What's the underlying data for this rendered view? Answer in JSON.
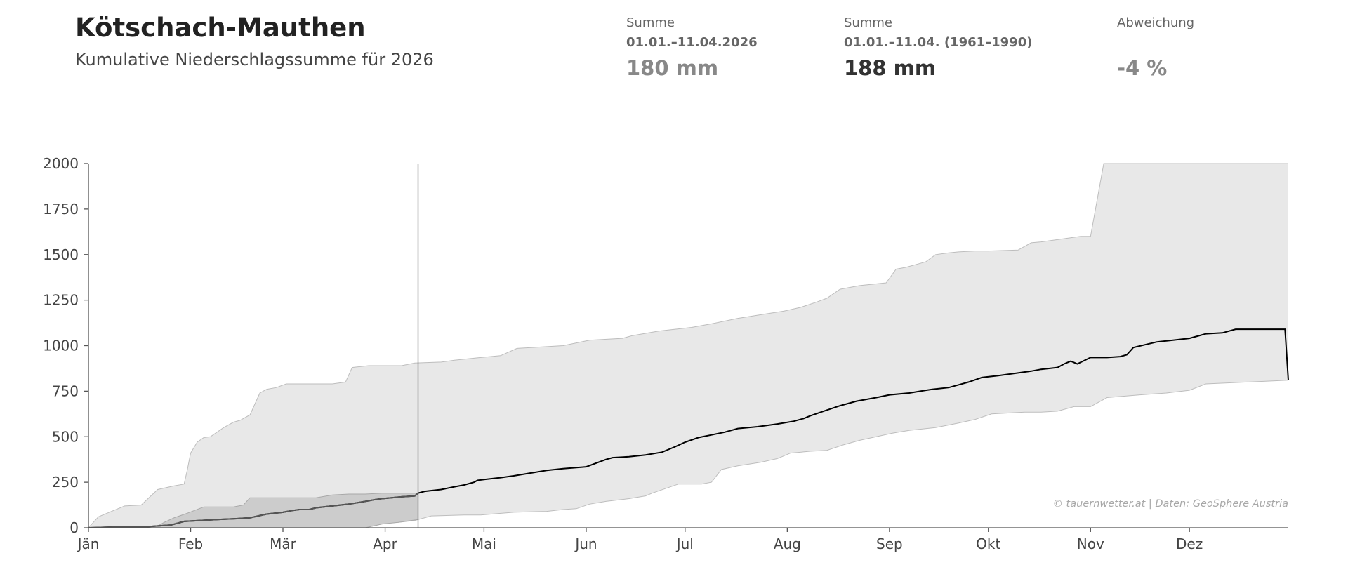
{
  "header": {
    "title": "Kötschach-Mauthen",
    "subtitle": "Kumulative Niederschlagssumme für 2026"
  },
  "stats": [
    {
      "label": "Summe",
      "period": "01.01.–11.04.2026",
      "value": "180 mm"
    },
    {
      "label": "Summe",
      "period": "01.01.–11.04. (1961–1990)",
      "value": "188 mm"
    },
    {
      "label": "Abweichung",
      "period": "",
      "value": "-4 %"
    }
  ],
  "credit": "© tauernwetter.at | Daten: GeoSphere Austria",
  "colors": {
    "band_outer": "#e8e8e8",
    "band_inner": "#cccccc",
    "mean_line": "#000000",
    "current_line": "#555555",
    "axis": "#555555"
  },
  "chart_data": {
    "type": "area",
    "x_unit": "day of year",
    "xlim": [
      1,
      365
    ],
    "ylim": [
      0,
      2000
    ],
    "ylabel": "",
    "xlabel": "",
    "grid": false,
    "ytick_labels": [
      "0",
      "250",
      "500",
      "750",
      "1000",
      "1250",
      "1500",
      "1750",
      "2000"
    ],
    "yticks": [
      0,
      250,
      500,
      750,
      1000,
      1250,
      1500,
      1750,
      2000
    ],
    "month_labels": [
      "Jän",
      "Feb",
      "Mär",
      "Apr",
      "Mai",
      "Jun",
      "Jul",
      "Aug",
      "Sep",
      "Okt",
      "Nov",
      "Dez"
    ],
    "month_starts": [
      1,
      32,
      60,
      91,
      121,
      152,
      182,
      213,
      244,
      274,
      305,
      335
    ],
    "today_day": 101,
    "series": [
      {
        "role": "range_max",
        "x": [
          1,
          4,
          8,
          12,
          17,
          22,
          27,
          30,
          31,
          32,
          34,
          36,
          38,
          42,
          45,
          47,
          50,
          53,
          55,
          58,
          61,
          66,
          70,
          75,
          79,
          81,
          86,
          96,
          100,
          108,
          112,
          120,
          126,
          131,
          145,
          149,
          153,
          163,
          166,
          174,
          184,
          190,
          198,
          205,
          212,
          217,
          222,
          225,
          229,
          235,
          243,
          246,
          249,
          253,
          255,
          258,
          262,
          265,
          270,
          274,
          283,
          287,
          290,
          302,
          305,
          307,
          309,
          315,
          335,
          340,
          345,
          365
        ],
        "y": [
          0,
          60,
          90,
          120,
          125,
          210,
          230,
          240,
          320,
          410,
          470,
          495,
          500,
          550,
          580,
          590,
          620,
          740,
          760,
          770,
          790,
          790,
          790,
          790,
          800,
          880,
          890,
          890,
          905,
          910,
          920,
          935,
          945,
          985,
          1000,
          1015,
          1030,
          1040,
          1055,
          1080,
          1100,
          1120,
          1150,
          1170,
          1190,
          1210,
          1240,
          1260,
          1310,
          1330,
          1345,
          1420,
          1430,
          1450,
          1460,
          1500,
          1510,
          1515,
          1520,
          1520,
          1525,
          1565,
          1570,
          1600,
          1600,
          1800,
          2000,
          2000,
          2000,
          2000,
          2000,
          2000
        ]
      },
      {
        "role": "range_min",
        "x": [
          1,
          30,
          55,
          85,
          91,
          95,
          100,
          105,
          115,
          120,
          130,
          140,
          145,
          149,
          153,
          158,
          165,
          170,
          172,
          180,
          187,
          190,
          193,
          198,
          205,
          210,
          214,
          220,
          225,
          230,
          235,
          240,
          245,
          250,
          258,
          265,
          270,
          275,
          285,
          290,
          295,
          300,
          305,
          310,
          320,
          328,
          335,
          340,
          365
        ],
        "y": [
          0,
          0,
          0,
          0,
          25,
          30,
          40,
          65,
          70,
          70,
          85,
          90,
          100,
          105,
          130,
          145,
          160,
          175,
          190,
          240,
          240,
          250,
          320,
          340,
          360,
          380,
          410,
          420,
          425,
          455,
          480,
          500,
          520,
          535,
          550,
          575,
          595,
          625,
          635,
          635,
          640,
          665,
          665,
          715,
          730,
          740,
          755,
          790,
          810
        ]
      },
      {
        "role": "current_max",
        "x": [
          1,
          22,
          24,
          27,
          31,
          36,
          40,
          45,
          48,
          50,
          54,
          60,
          70,
          75,
          80,
          85,
          90,
          95,
          101
        ],
        "y": [
          0,
          10,
          30,
          55,
          80,
          115,
          115,
          115,
          125,
          165,
          165,
          165,
          165,
          180,
          185,
          185,
          190,
          190,
          190
        ]
      },
      {
        "role": "current_min",
        "x": [
          1,
          85,
          90,
          95,
          101
        ],
        "y": [
          0,
          0,
          20,
          30,
          45
        ]
      },
      {
        "role": "mean",
        "x": [
          1,
          10,
          18,
          22,
          26,
          30,
          35,
          40,
          46,
          50,
          55,
          60,
          63,
          65,
          68,
          70,
          75,
          80,
          85,
          88,
          90,
          93,
          96,
          100,
          101,
          103,
          108,
          112,
          115,
          118,
          119,
          121,
          126,
          130,
          135,
          140,
          145,
          152,
          158,
          160,
          165,
          170,
          175,
          179,
          182,
          186,
          190,
          194,
          198,
          204,
          210,
          215,
          218,
          220,
          224,
          229,
          234,
          240,
          244,
          250,
          255,
          257,
          262,
          265,
          268,
          272,
          277,
          283,
          287,
          290,
          295,
          297,
          299,
          301,
          305,
          310,
          314,
          316,
          318,
          325,
          330,
          335,
          340,
          345,
          349,
          355,
          364,
          365
        ],
        "y": [
          0,
          5,
          5,
          10,
          15,
          35,
          40,
          45,
          50,
          55,
          75,
          85,
          95,
          100,
          100,
          110,
          120,
          130,
          145,
          155,
          160,
          165,
          170,
          175,
          190,
          200,
          210,
          225,
          235,
          250,
          260,
          265,
          275,
          285,
          300,
          315,
          325,
          335,
          375,
          385,
          390,
          400,
          415,
          445,
          470,
          495,
          510,
          525,
          545,
          555,
          570,
          585,
          600,
          615,
          640,
          670,
          695,
          715,
          730,
          740,
          755,
          760,
          770,
          785,
          800,
          825,
          835,
          850,
          860,
          870,
          880,
          900,
          915,
          900,
          935,
          935,
          940,
          950,
          990,
          1020,
          1030,
          1040,
          1065,
          1070,
          1090,
          1090,
          1090,
          810
        ]
      }
    ]
  }
}
